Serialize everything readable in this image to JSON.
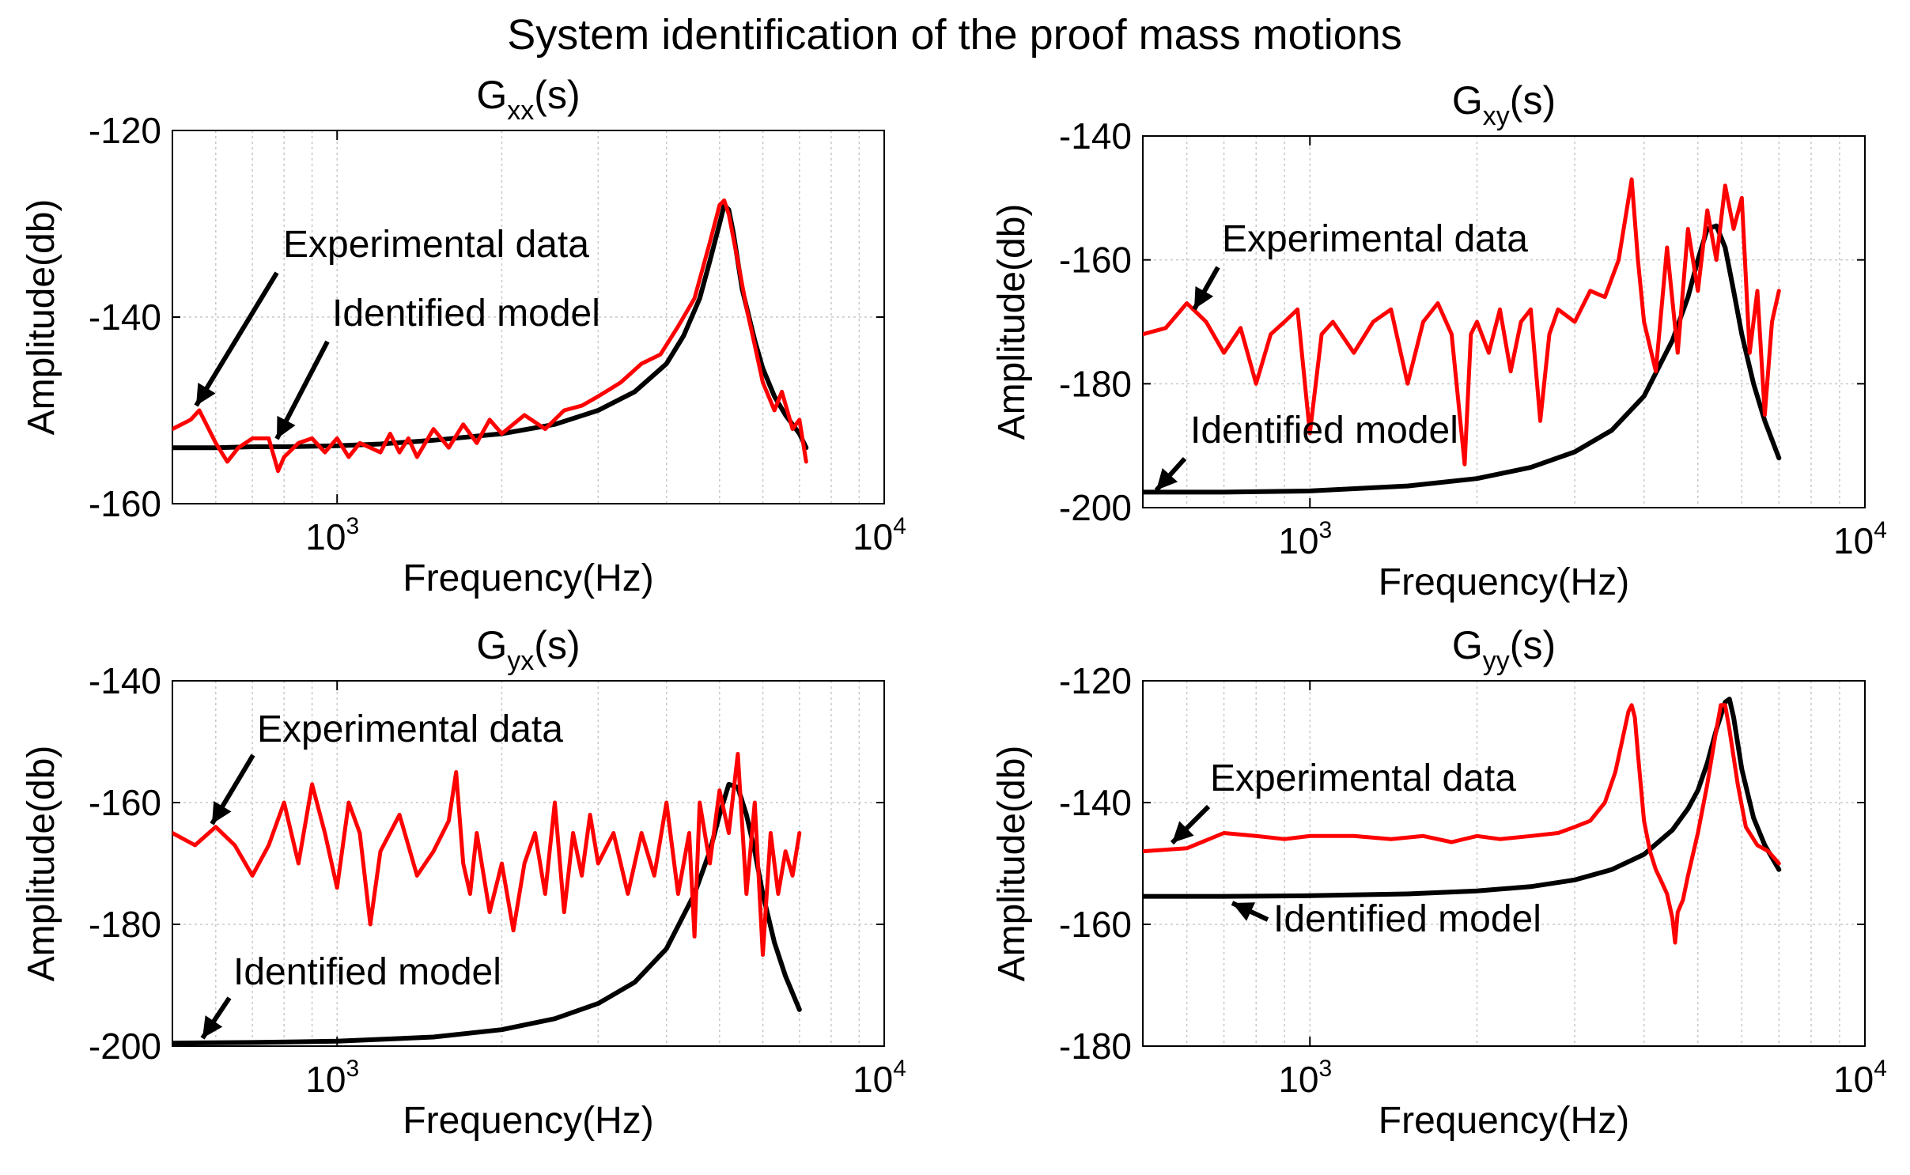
{
  "figure": {
    "title": "System identification of the proof mass motions"
  },
  "colors": {
    "experimental": "#ff0000",
    "model": "#000000",
    "grid": "#c8c8c8",
    "axis": "#000000"
  },
  "chart_data": [
    {
      "id": "gxx",
      "type": "line",
      "title": "Gxx(s)",
      "title_main": "G",
      "title_sub": "xx",
      "title_tail": "(s)",
      "xlabel": "Frequency(Hz)",
      "ylabel": "Amplitude(db)",
      "xscale": "log",
      "xlim": [
        500,
        10000
      ],
      "ylim": [
        -160,
        -120
      ],
      "yticks": [
        -120,
        -140,
        -160
      ],
      "ytick_labels": [
        "-120",
        "-140",
        "-160"
      ],
      "xticks": [
        {
          "value": 1000,
          "base": "10",
          "exp": "3"
        },
        {
          "value": 10000,
          "base": "10",
          "exp": "4"
        }
      ],
      "grid": true,
      "series": [
        {
          "name": "Experimental data",
          "color": "#ff0000",
          "x": [
            500,
            540,
            560,
            600,
            630,
            660,
            700,
            750,
            780,
            800,
            850,
            900,
            950,
            1000,
            1050,
            1100,
            1150,
            1200,
            1250,
            1300,
            1350,
            1400,
            1500,
            1600,
            1700,
            1800,
            1900,
            2000,
            2200,
            2400,
            2600,
            2800,
            3000,
            3300,
            3600,
            3900,
            4200,
            4500,
            4800,
            5000,
            5100,
            5200,
            5400,
            5600,
            5800,
            6000,
            6300,
            6500,
            6800,
            7000,
            7200
          ],
          "values": [
            -152.0,
            -151.0,
            -150.0,
            -153.5,
            -155.5,
            -154.0,
            -153.0,
            -153.0,
            -156.5,
            -155.0,
            -153.5,
            -153.0,
            -154.5,
            -153.0,
            -155.0,
            -153.5,
            -154.0,
            -154.5,
            -152.5,
            -154.5,
            -153.0,
            -155.0,
            -152.0,
            -154.0,
            -151.5,
            -153.5,
            -151.0,
            -152.5,
            -150.5,
            -152.0,
            -150.0,
            -149.5,
            -148.5,
            -147.0,
            -145.0,
            -144.0,
            -141.0,
            -138.0,
            -132.0,
            -128.0,
            -127.5,
            -129.0,
            -134.0,
            -139.0,
            -143.0,
            -147.0,
            -150.0,
            -148.0,
            -152.0,
            -151.0,
            -155.5
          ]
        },
        {
          "name": "Identified model",
          "color": "#000000",
          "x": [
            500,
            600,
            700,
            800,
            1000,
            1200,
            1500,
            2000,
            2500,
            3000,
            3500,
            4000,
            4300,
            4600,
            4800,
            5000,
            5100,
            5200,
            5300,
            5500,
            5800,
            6000,
            6300,
            6600,
            7000,
            7200
          ],
          "values": [
            -154.0,
            -154.0,
            -153.9,
            -153.9,
            -153.8,
            -153.6,
            -153.2,
            -152.5,
            -151.5,
            -150.0,
            -148.0,
            -145.0,
            -142.0,
            -138.0,
            -134.0,
            -130.0,
            -128.0,
            -128.5,
            -131.0,
            -137.0,
            -142.5,
            -145.5,
            -148.5,
            -150.5,
            -152.5,
            -154.0
          ]
        }
      ],
      "annotations": [
        {
          "text": "Experimental data"
        },
        {
          "text": "Identified model"
        }
      ]
    },
    {
      "id": "gxy",
      "type": "line",
      "title": "Gxy(s)",
      "title_main": "G",
      "title_sub": "xy",
      "title_tail": "(s)",
      "xlabel": "Frequency(Hz)",
      "ylabel": "Amplitude(db)",
      "xscale": "log",
      "xlim": [
        500,
        10000
      ],
      "ylim": [
        -200,
        -140
      ],
      "yticks": [
        -140,
        -160,
        -180,
        -200
      ],
      "ytick_labels": [
        "-140",
        "-160",
        "-180",
        "-200"
      ],
      "xticks": [
        {
          "value": 1000,
          "base": "10",
          "exp": "3"
        },
        {
          "value": 10000,
          "base": "10",
          "exp": "4"
        }
      ],
      "grid": true,
      "series": [
        {
          "name": "Experimental data",
          "color": "#ff0000",
          "x": [
            500,
            550,
            600,
            650,
            700,
            750,
            800,
            850,
            900,
            950,
            1000,
            1050,
            1100,
            1200,
            1300,
            1400,
            1500,
            1600,
            1700,
            1800,
            1900,
            1950,
            2000,
            2100,
            2200,
            2300,
            2400,
            2500,
            2600,
            2700,
            2800,
            3000,
            3200,
            3400,
            3600,
            3800,
            3900,
            4000,
            4200,
            4400,
            4600,
            4800,
            5000,
            5200,
            5400,
            5600,
            5800,
            6000,
            6200,
            6400,
            6600,
            6800,
            7000
          ],
          "values": [
            -172,
            -171,
            -167,
            -170,
            -175,
            -171,
            -180,
            -172,
            -170,
            -168,
            -188,
            -172,
            -170,
            -175,
            -170,
            -168,
            -180,
            -170,
            -167,
            -172,
            -193,
            -172,
            -170,
            -175,
            -168,
            -178,
            -170,
            -168,
            -186,
            -172,
            -168,
            -170,
            -165,
            -166,
            -160,
            -147,
            -160,
            -170,
            -178,
            -158,
            -175,
            -155,
            -165,
            -152,
            -160,
            -148,
            -155,
            -150,
            -175,
            -165,
            -185,
            -170,
            -165
          ]
        },
        {
          "name": "Identified model",
          "color": "#000000",
          "x": [
            500,
            700,
            1000,
            1500,
            2000,
            2500,
            3000,
            3500,
            4000,
            4500,
            4800,
            5000,
            5200,
            5400,
            5600,
            5800,
            6000,
            6300,
            6600,
            7000
          ],
          "values": [
            -197.5,
            -197.5,
            -197.3,
            -196.5,
            -195.3,
            -193.5,
            -191.0,
            -187.5,
            -182.0,
            -173.0,
            -166.0,
            -160.0,
            -155.0,
            -154.5,
            -158.0,
            -165.0,
            -172.0,
            -180.0,
            -186.0,
            -192.0
          ]
        }
      ],
      "annotations": [
        {
          "text": "Experimental data"
        },
        {
          "text": "Identified model"
        }
      ]
    },
    {
      "id": "gyx",
      "type": "line",
      "title": "Gyx(s)",
      "title_main": "G",
      "title_sub": "yx",
      "title_tail": "(s)",
      "xlabel": "Frequency(Hz)",
      "ylabel": "Amplitude(db)",
      "xscale": "log",
      "xlim": [
        500,
        10000
      ],
      "ylim": [
        -200,
        -140
      ],
      "yticks": [
        -140,
        -160,
        -180,
        -200
      ],
      "ytick_labels": [
        "-140",
        "-160",
        "-180",
        "-200"
      ],
      "xticks": [
        {
          "value": 1000,
          "base": "10",
          "exp": "3"
        },
        {
          "value": 10000,
          "base": "10",
          "exp": "4"
        }
      ],
      "grid": true,
      "series": [
        {
          "name": "Experimental data",
          "color": "#ff0000",
          "x": [
            500,
            550,
            600,
            650,
            700,
            750,
            800,
            850,
            900,
            950,
            1000,
            1050,
            1100,
            1150,
            1200,
            1300,
            1400,
            1500,
            1600,
            1650,
            1700,
            1750,
            1800,
            1900,
            2000,
            2100,
            2200,
            2300,
            2400,
            2500,
            2600,
            2700,
            2800,
            2900,
            3000,
            3200,
            3400,
            3600,
            3800,
            4000,
            4200,
            4400,
            4500,
            4600,
            4800,
            5000,
            5200,
            5400,
            5600,
            5800,
            6000,
            6200,
            6400,
            6600,
            6800,
            7000
          ],
          "values": [
            -165,
            -167,
            -164,
            -167,
            -172,
            -167,
            -160,
            -170,
            -157,
            -165,
            -174,
            -160,
            -165,
            -180,
            -168,
            -162,
            -172,
            -168,
            -163,
            -155,
            -170,
            -175,
            -165,
            -178,
            -170,
            -181,
            -170,
            -165,
            -175,
            -160,
            -178,
            -165,
            -172,
            -162,
            -170,
            -165,
            -175,
            -165,
            -172,
            -160,
            -175,
            -165,
            -182,
            -160,
            -170,
            -158,
            -165,
            -152,
            -175,
            -160,
            -185,
            -165,
            -175,
            -168,
            -172,
            -165
          ]
        },
        {
          "name": "Identified model",
          "color": "#000000",
          "x": [
            500,
            700,
            1000,
            1500,
            2000,
            2500,
            3000,
            3500,
            4000,
            4500,
            4800,
            5000,
            5200,
            5400,
            5600,
            5800,
            6000,
            6300,
            6600,
            7000
          ],
          "values": [
            -199.5,
            -199.4,
            -199.2,
            -198.5,
            -197.3,
            -195.5,
            -193.0,
            -189.5,
            -184.0,
            -175.0,
            -168.0,
            -162.0,
            -157.0,
            -157.5,
            -162.0,
            -168.0,
            -175.0,
            -183.0,
            -188.5,
            -194.0
          ]
        }
      ],
      "annotations": [
        {
          "text": "Experimental data"
        },
        {
          "text": "Identified model"
        }
      ]
    },
    {
      "id": "gyy",
      "type": "line",
      "title": "Gyy(s)",
      "title_main": "G",
      "title_sub": "yy",
      "title_tail": "(s)",
      "xlabel": "Frequency(Hz)",
      "ylabel": "Amplitude(db)",
      "xscale": "log",
      "xlim": [
        500,
        10000
      ],
      "ylim": [
        -180,
        -120
      ],
      "yticks": [
        -120,
        -140,
        -160,
        -180
      ],
      "ytick_labels": [
        "-120",
        "-140",
        "-160",
        "-180"
      ],
      "xticks": [
        {
          "value": 1000,
          "base": "10",
          "exp": "3"
        },
        {
          "value": 10000,
          "base": "10",
          "exp": "4"
        }
      ],
      "grid": true,
      "series": [
        {
          "name": "Experimental data",
          "color": "#ff0000",
          "x": [
            500,
            600,
            700,
            800,
            900,
            1000,
            1200,
            1400,
            1600,
            1800,
            2000,
            2200,
            2500,
            2800,
            3000,
            3200,
            3400,
            3550,
            3650,
            3750,
            3800,
            3850,
            3900,
            4000,
            4100,
            4200,
            4300,
            4400,
            4500,
            4550,
            4600,
            4700,
            4800,
            5000,
            5200,
            5400,
            5500,
            5600,
            5700,
            5900,
            6100,
            6400,
            6700,
            7000
          ],
          "values": [
            -148,
            -147.5,
            -145,
            -145.5,
            -146,
            -145.5,
            -145.5,
            -146,
            -145.5,
            -146.5,
            -145.5,
            -146,
            -145.5,
            -145,
            -144,
            -143,
            -140,
            -135,
            -130,
            -125,
            -124,
            -126,
            -132,
            -143,
            -148,
            -151,
            -153,
            -155,
            -159,
            -163,
            -158,
            -156,
            -152,
            -145,
            -137,
            -128,
            -124,
            -124,
            -128,
            -137,
            -144,
            -147,
            -148,
            -150
          ]
        },
        {
          "name": "Identified model",
          "color": "#000000",
          "x": [
            500,
            700,
            1000,
            1500,
            2000,
            2500,
            3000,
            3500,
            4000,
            4500,
            4800,
            5000,
            5200,
            5400,
            5600,
            5700,
            5800,
            6000,
            6300,
            6600,
            7000
          ],
          "values": [
            -155.4,
            -155.4,
            -155.3,
            -155.0,
            -154.5,
            -153.8,
            -152.7,
            -151.0,
            -148.5,
            -144.5,
            -141.0,
            -138.0,
            -133.5,
            -128.0,
            -123.5,
            -123.0,
            -126.0,
            -134.5,
            -142.5,
            -147.0,
            -151.0
          ]
        }
      ],
      "annotations": [
        {
          "text": "Experimental data"
        },
        {
          "text": "Identified model"
        }
      ]
    }
  ]
}
